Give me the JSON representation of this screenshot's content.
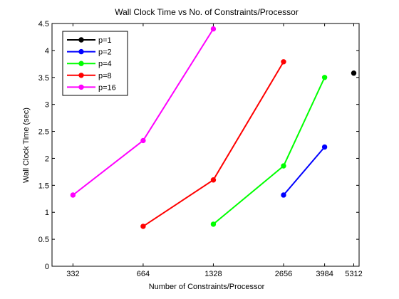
{
  "chart_data": {
    "type": "line",
    "title": "Wall Clock Time vs No. of Constraints/Processor",
    "xlabel": "Number of Constraints/Processor",
    "ylabel": "Wall Clock Time (sec)",
    "x_ticks": [
      332,
      664,
      1328,
      2656,
      3984,
      5312
    ],
    "x_scale": "log",
    "xlim": [
      270,
      5600
    ],
    "ylim": [
      0,
      4.5
    ],
    "y_ticks": [
      0,
      0.5,
      1,
      1.5,
      2,
      2.5,
      3,
      3.5,
      4,
      4.5
    ],
    "grid": false,
    "legend_position": "top-left",
    "series": [
      {
        "name": "p=1",
        "color": "#000000",
        "points": [
          {
            "x": 5312,
            "y": 3.58
          }
        ]
      },
      {
        "name": "p=2",
        "color": "#0000ff",
        "points": [
          {
            "x": 2656,
            "y": 1.32
          },
          {
            "x": 3984,
            "y": 2.21
          }
        ]
      },
      {
        "name": "p=4",
        "color": "#00ff00",
        "points": [
          {
            "x": 1328,
            "y": 0.78
          },
          {
            "x": 2656,
            "y": 1.86
          },
          {
            "x": 3984,
            "y": 3.5
          }
        ]
      },
      {
        "name": "p=8",
        "color": "#ff0000",
        "points": [
          {
            "x": 664,
            "y": 0.74
          },
          {
            "x": 1328,
            "y": 1.6
          },
          {
            "x": 2656,
            "y": 3.79
          }
        ]
      },
      {
        "name": "p=16",
        "color": "#ff00ff",
        "points": [
          {
            "x": 332,
            "y": 1.32
          },
          {
            "x": 664,
            "y": 2.33
          },
          {
            "x": 1328,
            "y": 4.4
          }
        ]
      }
    ]
  }
}
